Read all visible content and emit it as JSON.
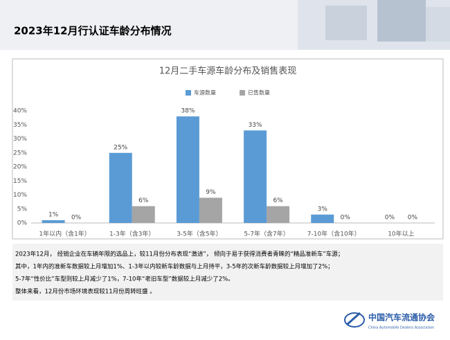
{
  "header": {
    "title": "2023年12月行认证车龄分布情况"
  },
  "chart_data": {
    "type": "bar",
    "title": "12月二手车源车龄分布及销售表现",
    "categories": [
      "1年以内（含1年）",
      "1-3年（含3年）",
      "3-5年（含5年）",
      "5-7年（含7年）",
      "7-10年（含10年）",
      "10年以上"
    ],
    "series": [
      {
        "name": "车源数量",
        "color": "#5b9bd5",
        "values": [
          1,
          25,
          38,
          33,
          3,
          0
        ],
        "value_labels": [
          "1%",
          "25%",
          "38%",
          "33%",
          "3%",
          "0%"
        ]
      },
      {
        "name": "已售数量",
        "color": "#a5a5a5",
        "values": [
          0,
          6,
          9,
          6,
          0,
          0
        ],
        "value_labels": [
          "0%",
          "6%",
          "9%",
          "6%",
          "0%",
          "0%"
        ]
      }
    ],
    "ylim": [
      0,
      40
    ],
    "yticks": [
      {
        "value": 0,
        "label": "0%"
      },
      {
        "value": 5,
        "label": "5%"
      },
      {
        "value": 10,
        "label": "10%"
      },
      {
        "value": 15,
        "label": "15%"
      },
      {
        "value": 20,
        "label": "20%"
      },
      {
        "value": 25,
        "label": "25%"
      },
      {
        "value": 30,
        "label": "30%"
      },
      {
        "value": 35,
        "label": "35%"
      },
      {
        "value": 40,
        "label": "40%"
      }
    ],
    "legend": "top"
  },
  "notes": [
    "2023年12月， 经销企业在车辆年限的选品上，较11月份分布表现“激进”， 倾向于易于获得消费者青睐的“精品准新车”车源；",
    "其中，1年内的准新车数据较上月增加1%、1-3年以内较新车龄数据与上月持平，3-5年的次新车龄数据较上月增加了2%；",
    "5-7年“性价比”车型则较上月减少了1%，7-10年“老旧车型”数据较上月减少了2%。",
    "整体来看，12月份市场环境表现较11月份周转旺盛 。"
  ],
  "footer": {
    "org": "中国汽车流通协会",
    "org_en": "China Automobile Dealers Association"
  }
}
